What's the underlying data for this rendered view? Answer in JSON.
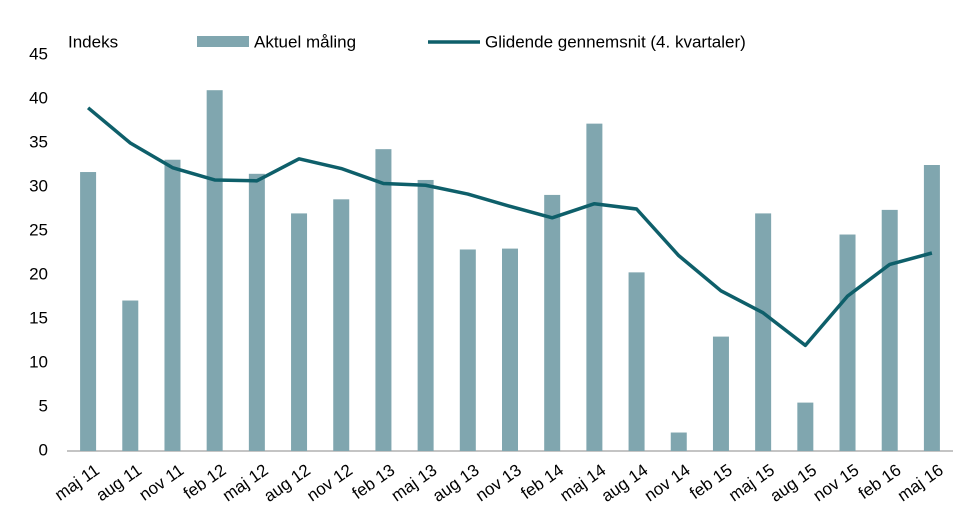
{
  "chart_data": {
    "type": "bar_line",
    "y_label": "Indeks",
    "categories": [
      "maj 11",
      "aug 11",
      "nov 11",
      "feb 12",
      "maj 12",
      "aug 12",
      "nov 12",
      "feb 13",
      "maj 13",
      "aug 13",
      "nov 13",
      "feb 14",
      "maj 14",
      "aug 14",
      "nov 14",
      "feb 15",
      "maj 15",
      "aug 15",
      "nov 15",
      "feb 16",
      "maj 16"
    ],
    "series": [
      {
        "name": "Aktuel måling",
        "kind": "bar",
        "color": "#80a6af",
        "values": [
          31.7,
          17.1,
          33.1,
          41.0,
          31.5,
          27.0,
          28.6,
          34.3,
          30.8,
          22.9,
          23.0,
          29.1,
          37.2,
          20.3,
          2.1,
          13.0,
          27.0,
          5.5,
          24.6,
          27.4,
          32.5
        ]
      },
      {
        "name": "Glidende gennemsnit (4. kvartaler)",
        "kind": "line",
        "color": "#0e5f6a",
        "values": [
          39.0,
          35.0,
          32.2,
          30.8,
          30.7,
          33.2,
          32.1,
          30.4,
          30.2,
          29.2,
          27.8,
          26.5,
          28.1,
          27.5,
          22.2,
          18.2,
          15.7,
          12.0,
          17.6,
          21.2,
          22.5
        ]
      }
    ],
    "ylim": [
      0,
      45
    ],
    "yticks": [
      0,
      5,
      10,
      15,
      20,
      25,
      30,
      35,
      40,
      45
    ],
    "grid": false
  }
}
